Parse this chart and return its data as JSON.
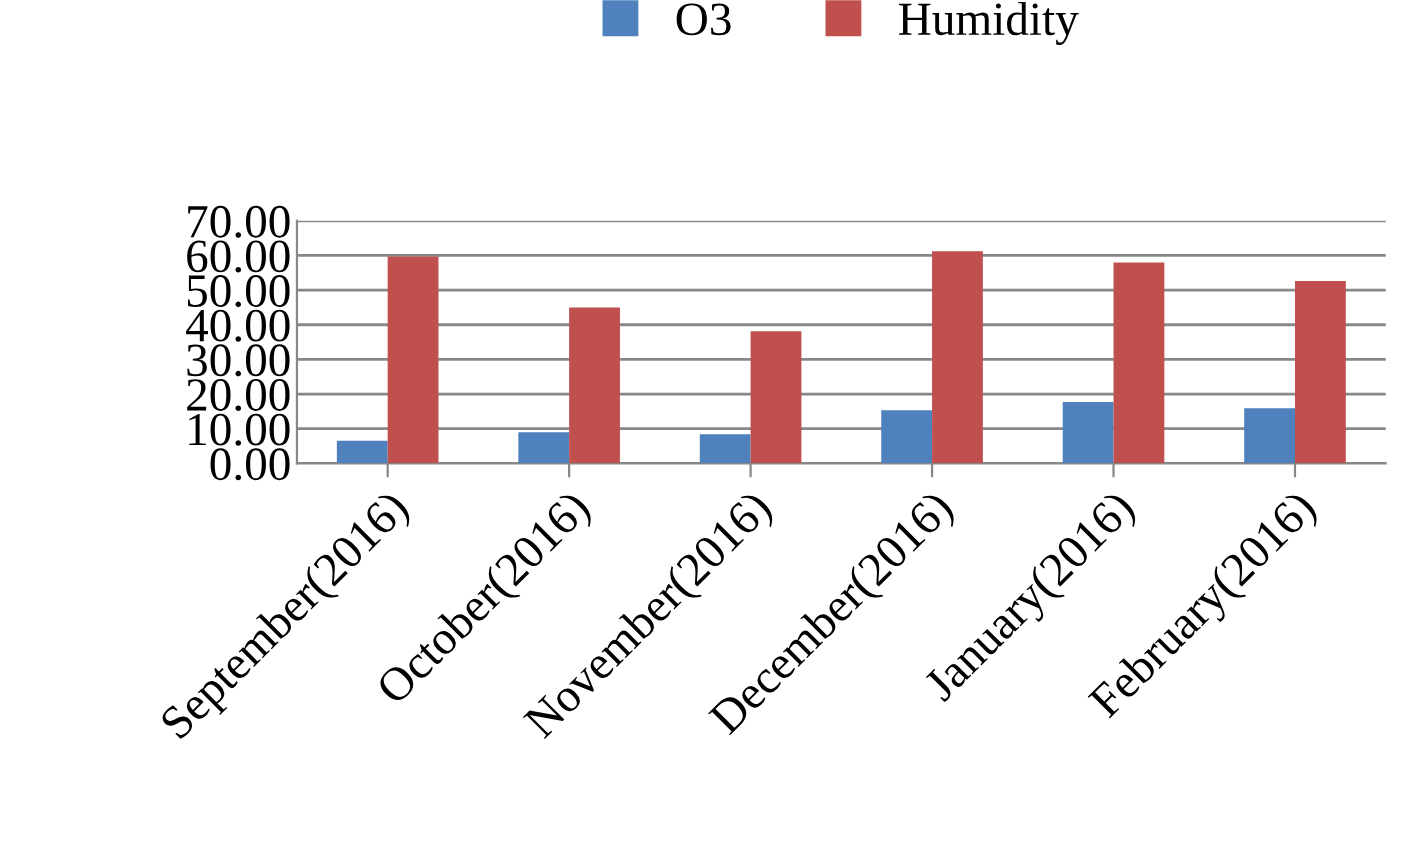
{
  "chart_data": {
    "type": "bar",
    "categories": [
      "September(2016)",
      "October(2016)",
      "November(2016)",
      "December(2016)",
      "January(2016)",
      "February(2016)"
    ],
    "series": [
      {
        "name": "O3",
        "color": "#4f81bd",
        "values": [
          6.5,
          9.0,
          8.4,
          15.3,
          17.7,
          15.9
        ]
      },
      {
        "name": "Humidity",
        "color": "#c0504d",
        "values": [
          59.7,
          45.0,
          38.1,
          61.2,
          58.0,
          52.6
        ]
      }
    ],
    "ylim": [
      0,
      70
    ],
    "yticks": [
      {
        "value": 0,
        "label": "0.00"
      },
      {
        "value": 10,
        "label": "10.00"
      },
      {
        "value": 20,
        "label": "20.00"
      },
      {
        "value": 30,
        "label": "30.00"
      },
      {
        "value": 40,
        "label": "40.00"
      },
      {
        "value": 50,
        "label": "50.00"
      },
      {
        "value": 60,
        "label": "60.00"
      },
      {
        "value": 70,
        "label": "70.00"
      }
    ],
    "grid": "y",
    "legend": "top"
  }
}
